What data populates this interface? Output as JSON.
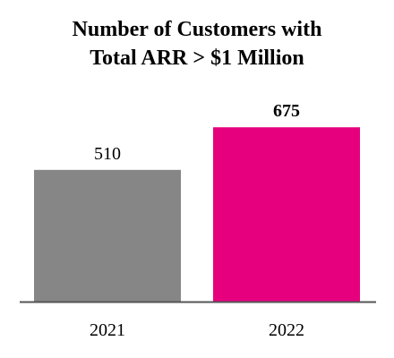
{
  "chart_data": {
    "type": "bar",
    "title_lines": [
      "Number of Customers with",
      "Total ARR > $1 Million"
    ],
    "categories": [
      "2021",
      "2022"
    ],
    "values": [
      510,
      675
    ],
    "data_labels": [
      "510",
      "675"
    ],
    "bold_labels": [
      false,
      true
    ],
    "colors": [
      "#868686",
      "#e6007e"
    ],
    "baseline_color": "#555555",
    "ylim": [
      0,
      700
    ],
    "grid": false,
    "legend": "none"
  }
}
